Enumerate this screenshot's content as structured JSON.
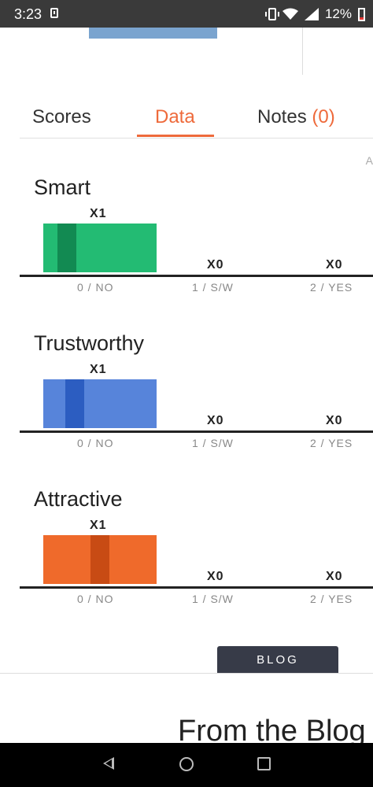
{
  "status_bar": {
    "time": "3:23",
    "battery": "12%"
  },
  "tabs": [
    {
      "label": "Scores"
    },
    {
      "label": "Data"
    },
    {
      "label": "Notes ",
      "count": "(0)"
    }
  ],
  "edge_letter": "A",
  "chart_data": [
    {
      "type": "bar",
      "title": "Smart",
      "categories": [
        "0 / NO",
        "1 / S/W",
        "2 / YES"
      ],
      "values": [
        1,
        0,
        0
      ],
      "value_labels": [
        "X1",
        "X0",
        "X0"
      ],
      "color": "#23bb73",
      "mark_color": "#128a52"
    },
    {
      "type": "bar",
      "title": "Trustworthy",
      "categories": [
        "0 / NO",
        "1 / S/W",
        "2 / YES"
      ],
      "values": [
        1,
        0,
        0
      ],
      "value_labels": [
        "X1",
        "X0",
        "X0"
      ],
      "color": "#5784da",
      "mark_color": "#2c5dc1"
    },
    {
      "type": "bar",
      "title": "Attractive",
      "categories": [
        "0 / NO",
        "1 / S/W",
        "2 / YES"
      ],
      "values": [
        1,
        0,
        0
      ],
      "value_labels": [
        "X1",
        "X0",
        "X0"
      ],
      "color": "#ef6a2b",
      "mark_color": "#c84b14"
    }
  ],
  "blog": {
    "button_label": "BLOG",
    "heading": "From the Blog"
  },
  "icons": {
    "vibrate": "vibrate-icon",
    "wifi": "wifi-icon",
    "signal": "signal-icon",
    "battery": "battery-icon",
    "back": "back-icon",
    "home": "home-icon",
    "recents": "recents-icon"
  }
}
